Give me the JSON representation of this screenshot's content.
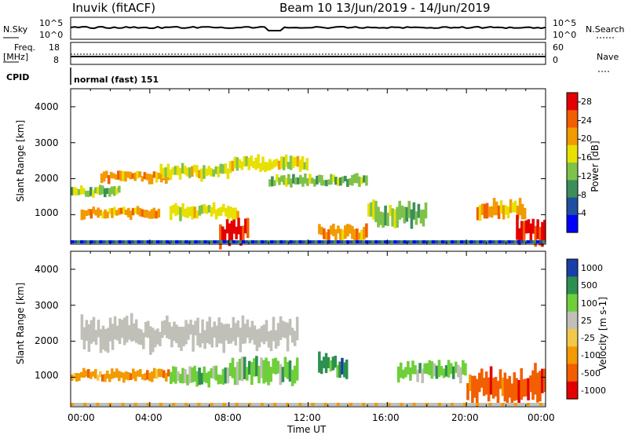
{
  "header": {
    "station": "Inuvik (fitACF)",
    "beam_date": "Beam 10  13/Jun/2019 - 14/Jun/2019"
  },
  "top_panels": {
    "nsky_label": "N.Sky",
    "nsky_ticks": [
      "10^5",
      "10^0"
    ],
    "nsearch_label": "N.Search",
    "nsearch_ticks": [
      "10^5",
      "10^0"
    ],
    "freq_label": "Freq.",
    "freq_unit": "[MHz]",
    "freq_ticks": [
      "18",
      "8"
    ],
    "nave_label": "Nave",
    "nave_ticks": [
      "60",
      "0"
    ],
    "cpid_label": "CPID",
    "cpid_value": "normal (fast) 151"
  },
  "colors": {
    "power_scale": [
      "#0000ff",
      "#1f4fa0",
      "#3c8f5a",
      "#7fc24a",
      "#e8e000",
      "#f29a00",
      "#f25e00",
      "#e40000"
    ],
    "velocity_scale": [
      "#e40000",
      "#f25e00",
      "#f29a00",
      "#f2c84b",
      "#c0c0b8",
      "#6fcf3a",
      "#2d8f50",
      "#1a3fa8"
    ]
  },
  "chart_data": [
    {
      "type": "heatmap",
      "title": "",
      "xlabel": "Time UT",
      "ylabel": "Slant Range [km]",
      "xlim": [
        "00:00",
        "24:00"
      ],
      "ylim": [
        180,
        4500
      ],
      "xticks": [
        "00:00",
        "04:00",
        "08:00",
        "12:00",
        "16:00",
        "20:00",
        "00:00"
      ],
      "yticks": [
        "1000",
        "2000",
        "3000",
        "4000"
      ],
      "colorbar": {
        "label": "Power [dB]",
        "ticks": [
          "4",
          "8",
          "12",
          "16",
          "20",
          "24",
          "28"
        ],
        "range": [
          0,
          30
        ]
      },
      "structures": [
        {
          "region": "echo band",
          "start_h": 0.0,
          "end_h": 2.5,
          "range_km": [
            1500,
            1800
          ],
          "level": 12
        },
        {
          "region": "echo band",
          "start_h": 0.5,
          "end_h": 4.5,
          "range_km": [
            900,
            1200
          ],
          "level": 22
        },
        {
          "region": "echo band",
          "start_h": 1.5,
          "end_h": 5.0,
          "range_km": [
            1900,
            2200
          ],
          "level": 20
        },
        {
          "region": "echo band",
          "start_h": 4.5,
          "end_h": 8.0,
          "range_km": [
            2000,
            2400
          ],
          "level": 17
        },
        {
          "region": "echo band",
          "start_h": 8.0,
          "end_h": 12.0,
          "range_km": [
            2200,
            2600
          ],
          "level": 18
        },
        {
          "region": "echo band",
          "start_h": 5.0,
          "end_h": 8.5,
          "range_km": [
            900,
            1300
          ],
          "level": 16
        },
        {
          "region": "echo band",
          "start_h": 7.5,
          "end_h": 9.0,
          "range_km": [
            200,
            900
          ],
          "level": 28
        },
        {
          "region": "echo band",
          "start_h": 10.0,
          "end_h": 15.0,
          "range_km": [
            1800,
            2100
          ],
          "level": 12
        },
        {
          "region": "echo band",
          "start_h": 12.5,
          "end_h": 15.0,
          "range_km": [
            300,
            700
          ],
          "level": 20
        },
        {
          "region": "echo band",
          "start_h": 15.0,
          "end_h": 18.0,
          "range_km": [
            700,
            1300
          ],
          "level": 14
        },
        {
          "region": "echo band",
          "start_h": 20.5,
          "end_h": 23.0,
          "range_km": [
            900,
            1400
          ],
          "level": 22
        },
        {
          "region": "echo band",
          "start_h": 22.5,
          "end_h": 24.0,
          "range_km": [
            200,
            900
          ],
          "level": 28
        }
      ]
    },
    {
      "type": "heatmap",
      "title": "",
      "xlabel": "Time UT",
      "ylabel": "Slant Range [km]",
      "xlim": [
        "00:00",
        "24:00"
      ],
      "ylim": [
        180,
        4500
      ],
      "xticks": [
        "00:00",
        "04:00",
        "08:00",
        "12:00",
        "16:00",
        "20:00",
        "00:00"
      ],
      "yticks": [
        "1000",
        "2000",
        "3000",
        "4000"
      ],
      "colorbar": {
        "label": "Velocity [m s-1]",
        "ticks": [
          "1000",
          "500",
          "100",
          "25",
          "-25",
          "-100",
          "-500",
          "-1000"
        ],
        "range": [
          -1000,
          1000
        ]
      },
      "structures": [
        {
          "region": "ground scatter",
          "start_h": 0.5,
          "end_h": 11.5,
          "range_km": [
            1800,
            2600
          ],
          "value": 0
        },
        {
          "region": "echo band",
          "start_h": 0.0,
          "end_h": 5.0,
          "range_km": [
            900,
            1200
          ],
          "value": -80
        },
        {
          "region": "echo band",
          "start_h": 5.0,
          "end_h": 8.0,
          "range_km": [
            800,
            1300
          ],
          "value": 150
        },
        {
          "region": "echo band",
          "start_h": 8.0,
          "end_h": 11.5,
          "range_km": [
            800,
            1500
          ],
          "value": 300
        },
        {
          "region": "echo band",
          "start_h": 12.5,
          "end_h": 14.0,
          "range_km": [
            1000,
            1600
          ],
          "value": 800
        },
        {
          "region": "echo band",
          "start_h": 16.5,
          "end_h": 20.0,
          "range_km": [
            900,
            1400
          ],
          "value": 200
        },
        {
          "region": "echo band",
          "start_h": 20.0,
          "end_h": 24.0,
          "range_km": [
            300,
            1200
          ],
          "value": -300
        }
      ]
    }
  ]
}
